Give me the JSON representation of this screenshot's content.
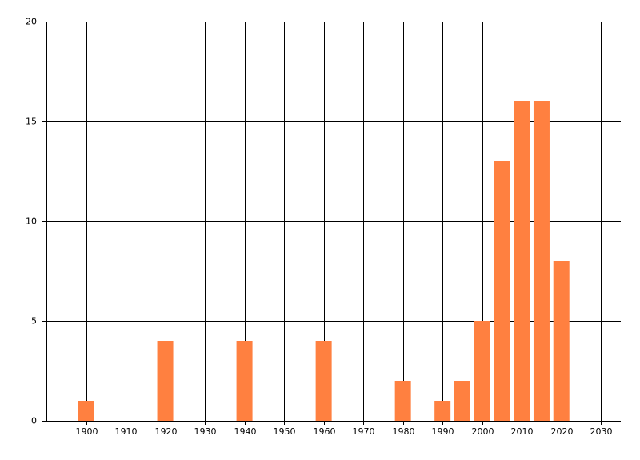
{
  "chart_data": {
    "type": "bar",
    "x": [
      1900,
      1920,
      1940,
      1960,
      1980,
      1990,
      1995,
      2000,
      2005,
      2010,
      2015,
      2020
    ],
    "values": [
      1,
      4,
      4,
      4,
      2,
      1,
      2,
      5,
      13,
      16,
      16,
      8
    ],
    "color": "#ff8040",
    "xlim": [
      1890,
      2035
    ],
    "xticks": [
      1900,
      1910,
      1920,
      1930,
      1940,
      1950,
      1960,
      1970,
      1980,
      1990,
      2000,
      2010,
      2020,
      2030
    ],
    "ylim": [
      0,
      20
    ],
    "yticks": [
      0,
      5,
      10,
      15,
      20
    ],
    "grid": true
  }
}
